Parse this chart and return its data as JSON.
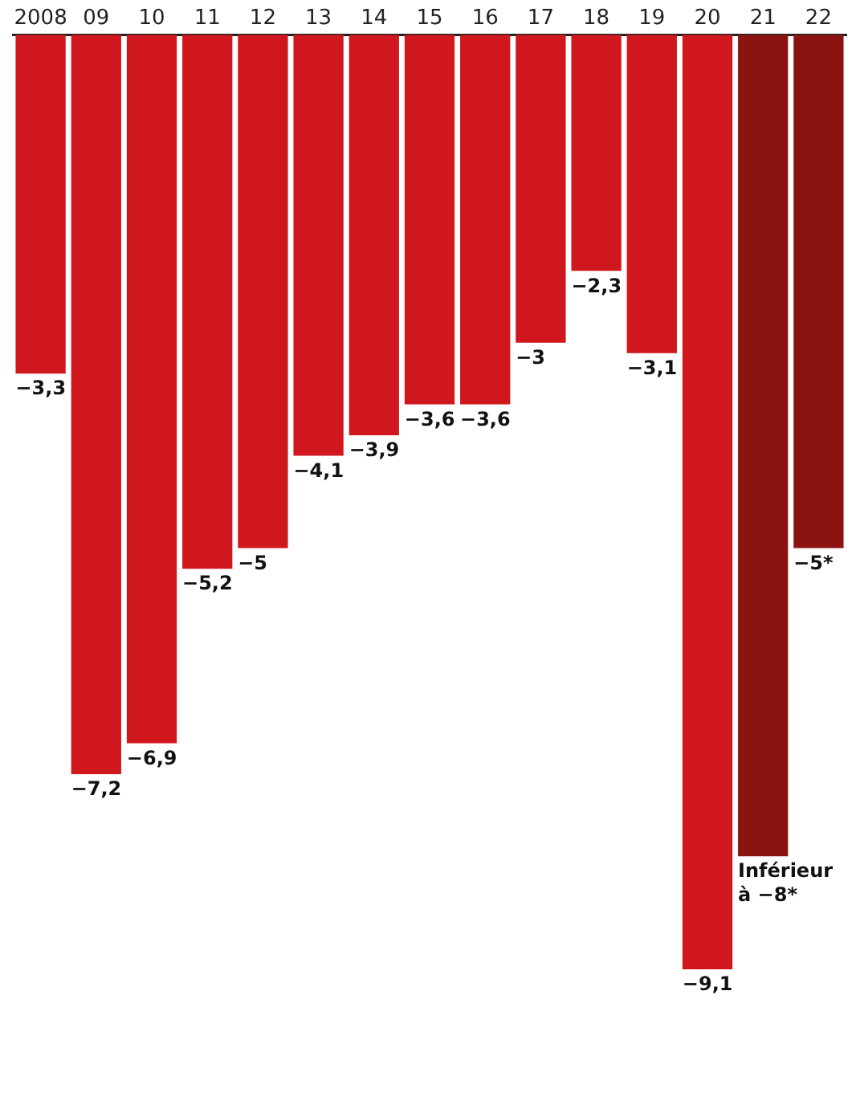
{
  "chart_data": {
    "type": "bar",
    "categories": [
      "2008",
      "09",
      "10",
      "11",
      "12",
      "13",
      "14",
      "15",
      "16",
      "17",
      "18",
      "19",
      "20",
      "21",
      "22"
    ],
    "values": [
      -3.3,
      -7.2,
      -6.9,
      -5.2,
      -5,
      -4.1,
      -3.9,
      -3.6,
      -3.6,
      -3,
      -2.3,
      -3.1,
      -9.1,
      -8,
      -5
    ],
    "colors": [
      "#d0171e",
      "#d0171e",
      "#d0171e",
      "#d0171e",
      "#d0171e",
      "#d0171e",
      "#d0171e",
      "#d0171e",
      "#d0171e",
      "#d0171e",
      "#d0171e",
      "#d0171e",
      "#d0171e",
      "#8b1410",
      "#8b1410"
    ],
    "value_labels": [
      "−3,3",
      "−7,2",
      "−6,9",
      "−5,2",
      "−5",
      "−4,1",
      "−3,9",
      "−3,6",
      "−3,6",
      "−3",
      "−2,3",
      "−3,1",
      "−9,1",
      "Inférieur à −8*",
      "−5*"
    ],
    "grid": false,
    "legend": false
  }
}
